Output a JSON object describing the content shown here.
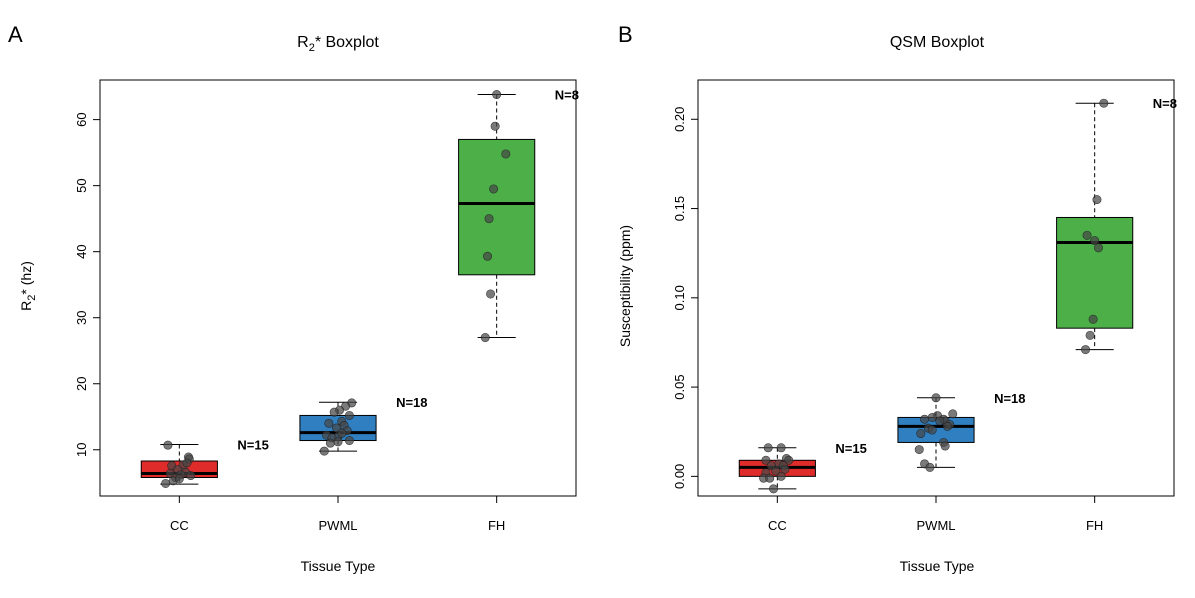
{
  "panels": [
    {
      "letter": "A",
      "title": "R2* Boxplot",
      "title_parts": [
        "R",
        "2",
        "* Boxplot"
      ],
      "ylabel_parts": [
        "R",
        "2",
        "* (hz)"
      ],
      "xlabel": "Tissue Type"
    },
    {
      "letter": "B",
      "title": "QSM Boxplot",
      "ylabel": "Susceptibility (ppm)",
      "xlabel": "Tissue Type"
    }
  ],
  "chart_data": [
    {
      "type": "box",
      "title": "R2* Boxplot",
      "xlabel": "Tissue Type",
      "ylabel": "R2* (hz)",
      "ylim": [
        3,
        66
      ],
      "yticks": [
        10,
        20,
        30,
        40,
        50,
        60
      ],
      "ytick_labels": [
        "10",
        "20",
        "30",
        "40",
        "50",
        "60"
      ],
      "categories": [
        "CC",
        "PWML",
        "FH"
      ],
      "colors": [
        "#e02b2b",
        "#2f7fc1",
        "#4caf48"
      ],
      "boxes": [
        {
          "min": 4.8,
          "q1": 5.8,
          "median": 6.4,
          "q3": 8.3,
          "max": 10.8
        },
        {
          "min": 9.8,
          "q1": 11.4,
          "median": 12.6,
          "q3": 15.2,
          "max": 17.2
        },
        {
          "min": 27.0,
          "q1": 36.5,
          "median": 47.3,
          "q3": 57.0,
          "max": 63.8
        }
      ],
      "n_labels": [
        "N=15",
        "N=18",
        "N=8"
      ],
      "points": [
        [
          [
            -0.15,
            10.7
          ],
          [
            0.12,
            8.9
          ],
          [
            0.13,
            8.6
          ],
          [
            0.05,
            7.7
          ],
          [
            0.1,
            8.0
          ],
          [
            -0.1,
            7.6
          ],
          [
            -0.02,
            7.0
          ],
          [
            0.08,
            6.6
          ],
          [
            -0.12,
            6.4
          ],
          [
            0.02,
            6.2
          ],
          [
            -0.05,
            5.8
          ],
          [
            0.15,
            6.1
          ],
          [
            -0.08,
            5.3
          ],
          [
            -0.18,
            4.9
          ],
          [
            0.0,
            5.6
          ]
        ],
        [
          [
            0.18,
            17.1
          ],
          [
            0.1,
            16.6
          ],
          [
            0.02,
            16.0
          ],
          [
            -0.05,
            15.7
          ],
          [
            0.15,
            15.2
          ],
          [
            0.05,
            14.3
          ],
          [
            -0.12,
            14.0
          ],
          [
            0.08,
            13.7
          ],
          [
            -0.02,
            13.3
          ],
          [
            0.12,
            12.9
          ],
          [
            -0.15,
            12.2
          ],
          [
            0.0,
            12.0
          ],
          [
            0.05,
            12.5
          ],
          [
            -0.08,
            11.8
          ],
          [
            0.15,
            11.4
          ],
          [
            -0.1,
            11.0
          ],
          [
            0.0,
            11.2
          ],
          [
            -0.18,
            9.8
          ]
        ],
        [
          [
            0.0,
            63.8
          ],
          [
            -0.02,
            59.0
          ],
          [
            0.12,
            54.8
          ],
          [
            -0.04,
            49.5
          ],
          [
            -0.1,
            45.0
          ],
          [
            -0.12,
            39.3
          ],
          [
            -0.08,
            33.6
          ],
          [
            -0.15,
            27.0
          ]
        ]
      ]
    },
    {
      "type": "box",
      "title": "QSM Boxplot",
      "xlabel": "Tissue Type",
      "ylabel": "Susceptibility (ppm)",
      "ylim": [
        -0.011,
        0.222
      ],
      "yticks": [
        0.0,
        0.05,
        0.1,
        0.15,
        0.2
      ],
      "ytick_labels": [
        "0.00",
        "0.05",
        "0.10",
        "0.15",
        "0.20"
      ],
      "categories": [
        "CC",
        "PWML",
        "FH"
      ],
      "colors": [
        "#e02b2b",
        "#2f7fc1",
        "#4caf48"
      ],
      "boxes": [
        {
          "min": -0.007,
          "q1": 0.0,
          "median": 0.005,
          "q3": 0.009,
          "max": 0.016
        },
        {
          "min": 0.005,
          "q1": 0.019,
          "median": 0.028,
          "q3": 0.033,
          "max": 0.044
        },
        {
          "min": 0.071,
          "q1": 0.083,
          "median": 0.131,
          "q3": 0.145,
          "max": 0.209
        }
      ],
      "n_labels": [
        "N=15",
        "N=18",
        "N=8"
      ],
      "points": [
        [
          [
            -0.12,
            0.016
          ],
          [
            0.05,
            0.016
          ],
          [
            0.12,
            0.01
          ],
          [
            0.15,
            0.009
          ],
          [
            -0.15,
            0.009
          ],
          [
            0.02,
            0.007
          ],
          [
            -0.08,
            0.006
          ],
          [
            0.08,
            0.006
          ],
          [
            0.1,
            0.004
          ],
          [
            -0.02,
            0.003
          ],
          [
            -0.15,
            0.002
          ],
          [
            0.05,
            0.0
          ],
          [
            -0.18,
            -0.001
          ],
          [
            -0.1,
            -0.001
          ],
          [
            -0.05,
            -0.007
          ]
        ],
        [
          [
            0.0,
            0.044
          ],
          [
            0.22,
            0.035
          ],
          [
            0.02,
            0.034
          ],
          [
            -0.05,
            0.033
          ],
          [
            0.1,
            0.032
          ],
          [
            -0.15,
            0.032
          ],
          [
            0.12,
            0.031
          ],
          [
            0.05,
            0.031
          ],
          [
            0.18,
            0.029
          ],
          [
            0.15,
            0.028
          ],
          [
            -0.1,
            0.027
          ],
          [
            -0.05,
            0.026
          ],
          [
            -0.2,
            0.024
          ],
          [
            0.1,
            0.019
          ],
          [
            0.12,
            0.017
          ],
          [
            -0.22,
            0.015
          ],
          [
            -0.15,
            0.007
          ],
          [
            -0.08,
            0.005
          ]
        ],
        [
          [
            0.12,
            0.209
          ],
          [
            0.03,
            0.155
          ],
          [
            -0.1,
            0.135
          ],
          [
            0.0,
            0.132
          ],
          [
            0.05,
            0.128
          ],
          [
            -0.02,
            0.088
          ],
          [
            -0.06,
            0.079
          ],
          [
            -0.12,
            0.071
          ]
        ]
      ]
    }
  ]
}
